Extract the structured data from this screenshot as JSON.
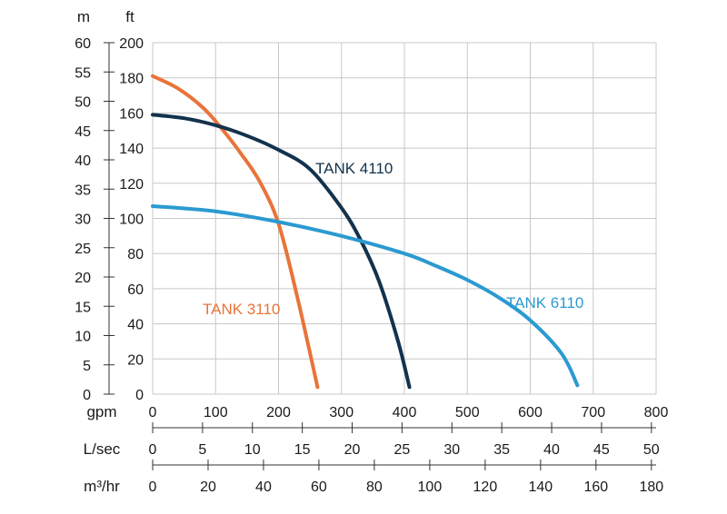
{
  "chart_data": {
    "type": "line",
    "x": {
      "unit": "gpm",
      "ticks": [
        0,
        100,
        200,
        300,
        400,
        500,
        600,
        700,
        800
      ],
      "range": [
        0,
        800
      ],
      "grid": true
    },
    "y": {
      "unit": "ft",
      "ticks": [
        0,
        20,
        40,
        60,
        80,
        100,
        120,
        140,
        160,
        180,
        200
      ],
      "range": [
        0,
        200
      ],
      "grid": true
    },
    "secondary_axes": {
      "left_m": {
        "unit": "m",
        "ticks": [
          0,
          5,
          10,
          15,
          20,
          25,
          30,
          35,
          40,
          45,
          50,
          55,
          60
        ],
        "range": [
          0,
          60
        ]
      },
      "lsec": {
        "unit": "L/sec",
        "ticks": [
          0,
          5,
          10,
          15,
          20,
          25,
          30,
          35,
          40,
          45,
          50
        ],
        "range": [
          0,
          50
        ]
      },
      "m3hr": {
        "unit": "m³/hr",
        "ticks": [
          0,
          20,
          40,
          60,
          80,
          100,
          120,
          140,
          160,
          180
        ],
        "range": [
          0,
          180
        ]
      }
    },
    "series": [
      {
        "name": "TANK 3110",
        "color": "#e8743b",
        "x": [
          0,
          40,
          80,
          110,
          140,
          170,
          200,
          230,
          262
        ],
        "y": [
          181,
          174,
          163,
          151,
          137,
          121,
          97,
          55,
          4
        ]
      },
      {
        "name": "TANK 4110",
        "color": "#12324d",
        "x": [
          0,
          50,
          100,
          150,
          200,
          250,
          300,
          330,
          360,
          390,
          408
        ],
        "y": [
          159,
          157,
          153,
          147,
          139,
          128,
          106,
          88,
          64,
          30,
          4
        ]
      },
      {
        "name": "TANK 6110",
        "color": "#2b9ad1",
        "x": [
          0,
          100,
          200,
          300,
          400,
          450,
          500,
          550,
          600,
          650,
          675
        ],
        "y": [
          107,
          104,
          98,
          90,
          80,
          73,
          65,
          55,
          42,
          23,
          5
        ]
      }
    ]
  }
}
